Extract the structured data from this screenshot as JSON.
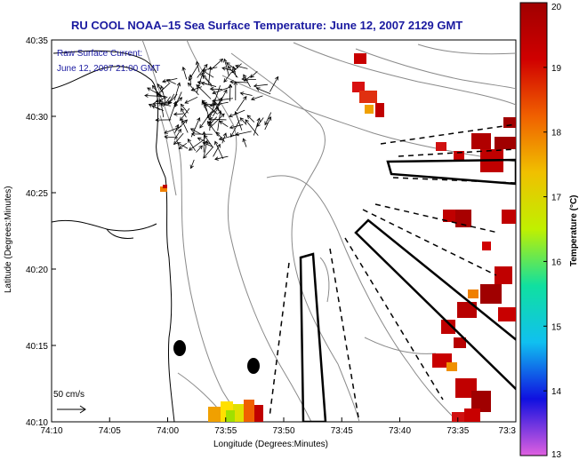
{
  "title": "RU COOL   NOAA–15  Sea Surface Temperature:  June 12, 2007 2129 GMT",
  "overlay": {
    "line1": "Raw Surface Current:",
    "line2": "June 12, 2007 21:00 GMT"
  },
  "scale_label": "50 cm/s",
  "axes": {
    "x_label": "Longitude (Degrees:Minutes)",
    "y_label": "Latitude (Degrees:Minutes)",
    "x_ticks": [
      "74:10",
      "74:05",
      "74:00",
      "73:55",
      "73:50",
      "73:45",
      "73:40",
      "73:35",
      "73:3"
    ],
    "y_ticks": [
      "40:35",
      "40:30",
      "40:25",
      "40:20",
      "40:15",
      "40:10"
    ]
  },
  "colorbar": {
    "label": "Temperature (°C)",
    "ticks": [
      "20",
      "19",
      "18",
      "17",
      "16",
      "15",
      "14",
      "13"
    ],
    "min": 13,
    "max": 20,
    "colors": [
      "#e060e0",
      "#1010e0",
      "#10c0f0",
      "#10e0a0",
      "#c0f000",
      "#f0c000",
      "#f06000",
      "#d00000",
      "#a00000"
    ]
  },
  "colors": {
    "title": "#1a1aa0",
    "coast": "#000000",
    "bathymetry": "#8a8a8a",
    "vectors": "#000000"
  }
}
